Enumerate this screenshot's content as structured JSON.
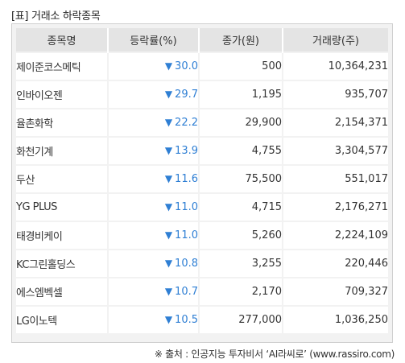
{
  "title": "[표] 거래소 하락종목",
  "table": {
    "headers": [
      "종목명",
      "등락률(%)",
      "종가(원)",
      "거래량(주)"
    ],
    "down_symbol": "▼",
    "rows": [
      {
        "name": "제이준코스메틱",
        "rate": "30.0",
        "price": "500",
        "volume": "10,364,231"
      },
      {
        "name": "인바이오젠",
        "rate": "29.7",
        "price": "1,195",
        "volume": "935,707"
      },
      {
        "name": "율촌화학",
        "rate": "22.2",
        "price": "29,900",
        "volume": "2,154,371"
      },
      {
        "name": "화천기계",
        "rate": "13.9",
        "price": "4,755",
        "volume": "3,304,577"
      },
      {
        "name": "두산",
        "rate": "11.6",
        "price": "75,500",
        "volume": "551,017"
      },
      {
        "name": "YG PLUS",
        "rate": "11.0",
        "price": "4,715",
        "volume": "2,176,271"
      },
      {
        "name": "태경비케이",
        "rate": "11.0",
        "price": "5,260",
        "volume": "2,224,109"
      },
      {
        "name": "KC그린홀딩스",
        "rate": "10.8",
        "price": "3,255",
        "volume": "220,446"
      },
      {
        "name": "에스엠벡셀",
        "rate": "10.7",
        "price": "2,170",
        "volume": "709,327"
      },
      {
        "name": "LG이노텍",
        "rate": "10.5",
        "price": "277,000",
        "volume": "1,036,250"
      }
    ]
  },
  "source": "※ 출처 : 인공지능 투자비서 ‘AI라씨로’ (www.rassiro.com)",
  "colors": {
    "down": "#2f7fd4",
    "header_bg": "#e4e4e4",
    "frame_bg": "#f2f2f2"
  }
}
